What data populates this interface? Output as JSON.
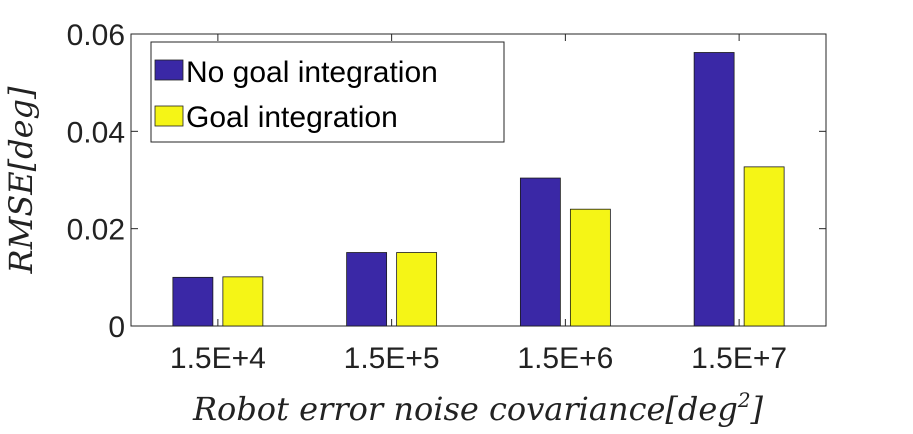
{
  "chart_data": {
    "type": "bar",
    "categories": [
      "1.5E+4",
      "1.5E+5",
      "1.5E+6",
      "1.5E+7"
    ],
    "series": [
      {
        "name": "No goal integration",
        "color": "#3a28a6",
        "values": [
          0.01,
          0.0151,
          0.0304,
          0.0562
        ]
      },
      {
        "name": "Goal integration",
        "color": "#f5f516",
        "values": [
          0.0101,
          0.0151,
          0.024,
          0.0327
        ]
      }
    ],
    "xlabel": "Robot error noise covariance[deg",
    "xlabel_superscript": "2",
    "xlabel_close": "]",
    "ylabel": "RMSE[deg]",
    "ylim": [
      0,
      0.06
    ],
    "yticks": [
      0,
      0.02,
      0.04,
      0.06
    ],
    "ytick_labels": [
      "0",
      "0.02",
      "0.04",
      "0.06"
    ],
    "legend_position": "top-left",
    "grid": false
  }
}
